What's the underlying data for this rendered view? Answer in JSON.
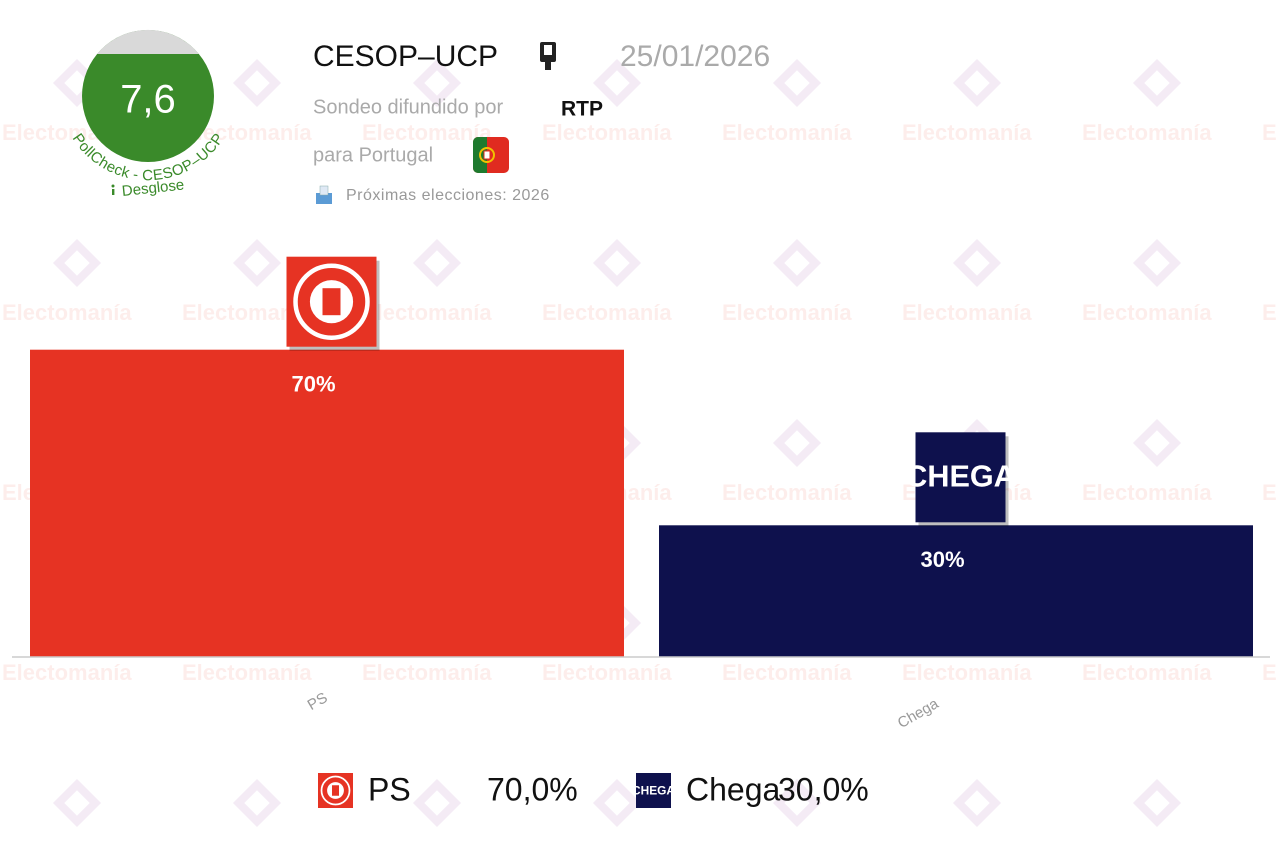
{
  "header": {
    "pollster": "CESOP–UCP",
    "date": "25/01/2026",
    "sponsor_prefix": "Sondeo difundido por",
    "sponsor": "RTP",
    "country": "para Portugal",
    "next_elections": "Próximas elecciones: 2026",
    "score": "7,6",
    "score_label": "PollCheck - CESOP–UCP",
    "breakdown": "Desglose",
    "watermark": "Electomanía"
  },
  "chart_data": {
    "type": "bar",
    "categories": [
      "PS",
      "Chega"
    ],
    "values": [
      70,
      30
    ],
    "value_labels": [
      "70%",
      "30%"
    ],
    "legend_labels": [
      "70,0%",
      "30,0%"
    ],
    "logo_texts": [
      null,
      "CHEGA"
    ],
    "colors": [
      "#e63323",
      "#0e114d"
    ],
    "ylim": [
      0,
      100
    ],
    "grid": false
  }
}
